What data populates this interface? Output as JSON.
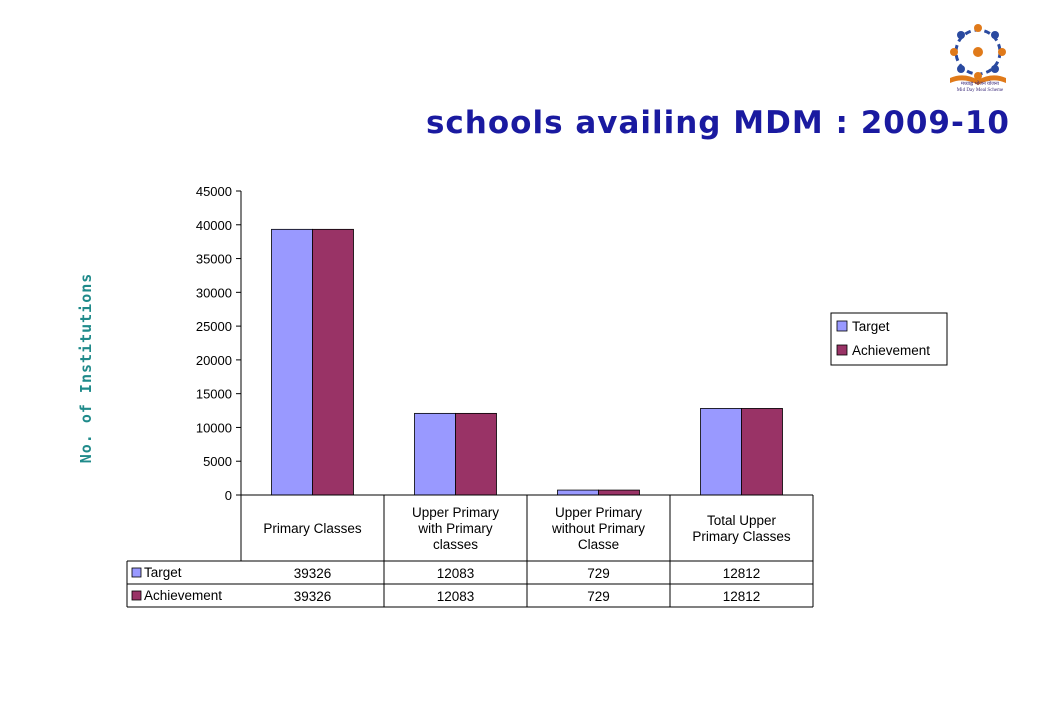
{
  "title": "schools availing MDM : 2009-10",
  "logo": {
    "caption_hindi": "मध्याह्न भोजन योजना",
    "caption_english": "Mid Day Meal Scheme"
  },
  "colors": {
    "title": "#1a1aa0",
    "ylabel": "#1f8a8a",
    "target": "#9999ff",
    "achievement": "#993366"
  },
  "chart_data": {
    "type": "bar",
    "ylabel": "No. of Institutions",
    "categories": [
      [
        "Primary Classes"
      ],
      [
        "Upper Primary",
        "with Primary",
        "classes"
      ],
      [
        "Upper Primary",
        "without Primary",
        "Classe"
      ],
      [
        "Total Upper",
        "Primary Classes"
      ]
    ],
    "series": [
      {
        "name": "Target",
        "values": [
          39326,
          12083,
          729,
          12812
        ],
        "color": "#9999ff"
      },
      {
        "name": "Achievement",
        "values": [
          39326,
          12083,
          729,
          12812
        ],
        "color": "#993366"
      }
    ],
    "yticks": [
      0,
      5000,
      10000,
      15000,
      20000,
      25000,
      30000,
      35000,
      40000,
      45000
    ],
    "ylim": [
      0,
      45000
    ],
    "grid": false,
    "legend": "right",
    "data_table": true
  }
}
